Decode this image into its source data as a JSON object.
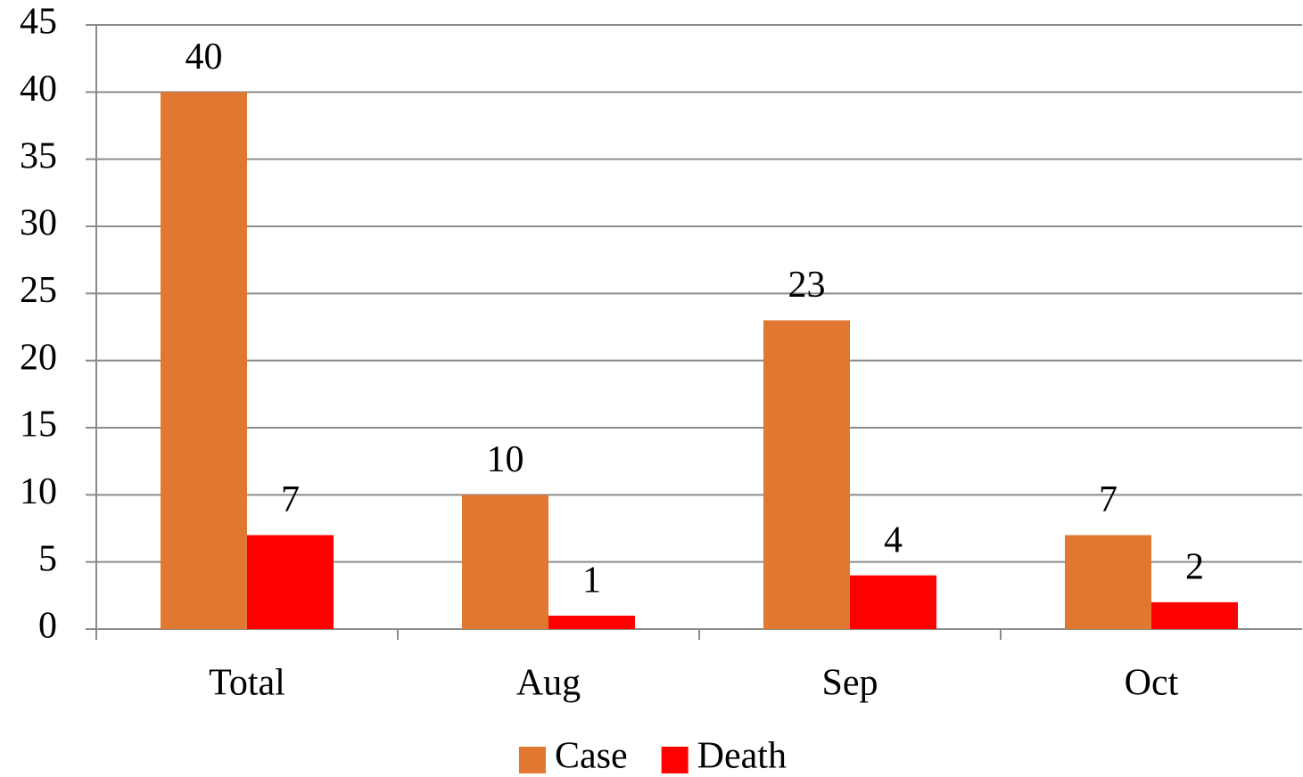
{
  "chart_data": {
    "type": "bar",
    "categories": [
      "Total",
      "Aug",
      "Sep",
      "Oct"
    ],
    "series": [
      {
        "name": "Case",
        "color": "#e07832",
        "values": [
          40,
          10,
          23,
          7
        ]
      },
      {
        "name": "Death",
        "color": "#ff0000",
        "values": [
          7,
          1,
          4,
          2
        ]
      }
    ],
    "ylim": [
      0,
      45
    ],
    "yticks": [
      0,
      5,
      10,
      15,
      20,
      25,
      30,
      35,
      40,
      45
    ],
    "grid": true,
    "legend": "bottom"
  }
}
